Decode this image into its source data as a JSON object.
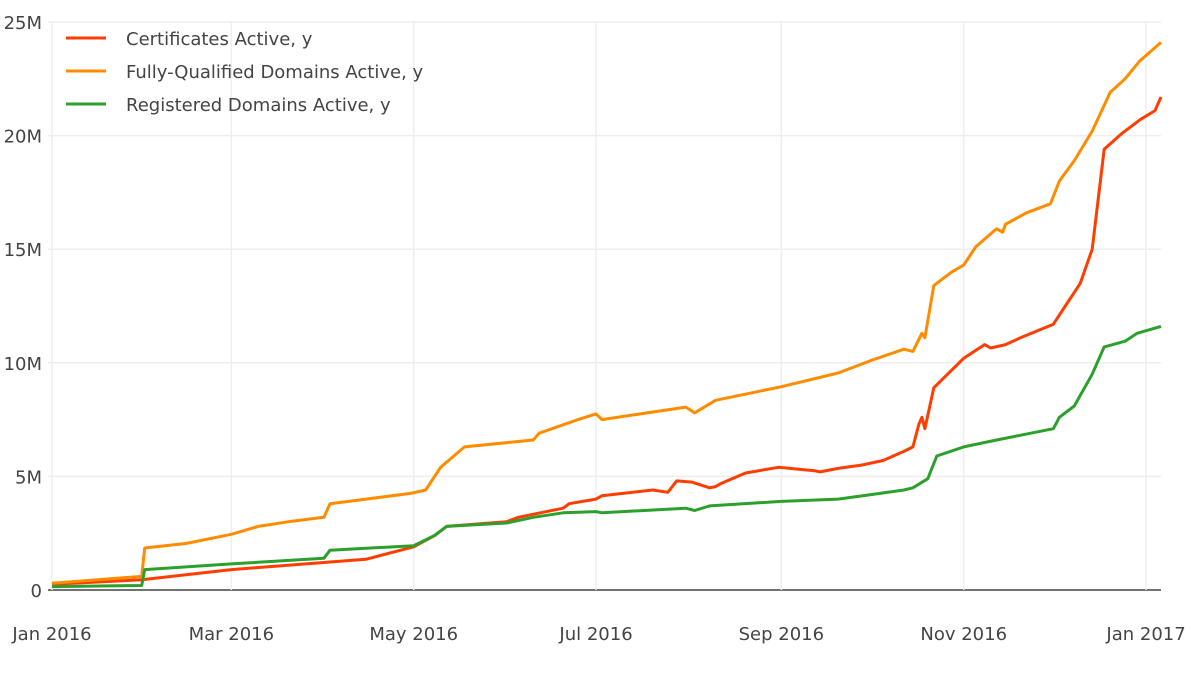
{
  "chart_data": {
    "type": "line",
    "title": "",
    "xlabel": "",
    "ylabel": "",
    "xlim": [
      "2016-01-01",
      "2017-01-06"
    ],
    "ylim": [
      0,
      25000000
    ],
    "grid": true,
    "legend_position": "top-left",
    "x_ticks": [
      {
        "date": "2016-01-01",
        "label": "Jan 2016"
      },
      {
        "date": "2016-03-01",
        "label": "Mar 2016"
      },
      {
        "date": "2016-05-01",
        "label": "May 2016"
      },
      {
        "date": "2016-07-01",
        "label": "Jul 2016"
      },
      {
        "date": "2016-09-01",
        "label": "Sep 2016"
      },
      {
        "date": "2016-11-01",
        "label": "Nov 2016"
      },
      {
        "date": "2017-01-01",
        "label": "Jan 2017"
      }
    ],
    "y_ticks": [
      {
        "value": 0,
        "label": "0"
      },
      {
        "value": 5000000,
        "label": "5M"
      },
      {
        "value": 10000000,
        "label": "10M"
      },
      {
        "value": 15000000,
        "label": "15M"
      },
      {
        "value": 20000000,
        "label": "20M"
      },
      {
        "value": 25000000,
        "label": "25M"
      }
    ],
    "series": [
      {
        "name": "Certificates Active, y",
        "color": "#ff3d00",
        "points": [
          [
            "2016-01-01",
            0.25
          ],
          [
            "2016-01-31",
            0.45
          ],
          [
            "2016-03-01",
            0.9
          ],
          [
            "2016-04-15",
            1.35
          ],
          [
            "2016-05-01",
            1.9
          ],
          [
            "2016-05-08",
            2.4
          ],
          [
            "2016-05-12",
            2.8
          ],
          [
            "2016-06-01",
            3.0
          ],
          [
            "2016-06-05",
            3.2
          ],
          [
            "2016-06-20",
            3.6
          ],
          [
            "2016-06-22",
            3.8
          ],
          [
            "2016-07-01",
            4.0
          ],
          [
            "2016-07-03",
            4.15
          ],
          [
            "2016-07-20",
            4.4
          ],
          [
            "2016-07-25",
            4.3
          ],
          [
            "2016-07-28",
            4.8
          ],
          [
            "2016-08-02",
            4.75
          ],
          [
            "2016-08-08",
            4.5
          ],
          [
            "2016-08-10",
            4.55
          ],
          [
            "2016-08-12",
            4.7
          ],
          [
            "2016-08-20",
            5.15
          ],
          [
            "2016-08-31",
            5.4
          ],
          [
            "2016-09-12",
            5.25
          ],
          [
            "2016-09-14",
            5.2
          ],
          [
            "2016-09-20",
            5.35
          ],
          [
            "2016-09-28",
            5.5
          ],
          [
            "2016-10-05",
            5.7
          ],
          [
            "2016-10-12",
            6.1
          ],
          [
            "2016-10-15",
            6.3
          ],
          [
            "2016-10-17",
            7.3
          ],
          [
            "2016-10-18",
            7.6
          ],
          [
            "2016-10-19",
            7.1
          ],
          [
            "2016-10-22",
            8.9
          ],
          [
            "2016-11-01",
            10.2
          ],
          [
            "2016-11-08",
            10.8
          ],
          [
            "2016-11-10",
            10.65
          ],
          [
            "2016-11-15",
            10.8
          ],
          [
            "2016-11-20",
            11.1
          ],
          [
            "2016-12-01",
            11.7
          ],
          [
            "2016-12-05",
            12.5
          ],
          [
            "2016-12-10",
            13.5
          ],
          [
            "2016-12-14",
            15.0
          ],
          [
            "2016-12-18",
            19.4
          ],
          [
            "2016-12-24",
            20.1
          ],
          [
            "2016-12-30",
            20.7
          ],
          [
            "2017-01-04",
            21.1
          ],
          [
            "2017-01-06",
            21.7
          ]
        ]
      },
      {
        "name": "Fully-Qualified Domains Active, y",
        "color": "#ff8c00",
        "points": [
          [
            "2016-01-01",
            0.3
          ],
          [
            "2016-01-31",
            0.6
          ],
          [
            "2016-02-01",
            1.85
          ],
          [
            "2016-02-15",
            2.05
          ],
          [
            "2016-03-01",
            2.45
          ],
          [
            "2016-03-10",
            2.8
          ],
          [
            "2016-03-20",
            3.0
          ],
          [
            "2016-04-01",
            3.2
          ],
          [
            "2016-04-03",
            3.8
          ],
          [
            "2016-04-15",
            4.0
          ],
          [
            "2016-04-30",
            4.25
          ],
          [
            "2016-05-05",
            4.4
          ],
          [
            "2016-05-10",
            5.4
          ],
          [
            "2016-05-18",
            6.3
          ],
          [
            "2016-06-10",
            6.6
          ],
          [
            "2016-06-12",
            6.9
          ],
          [
            "2016-06-25",
            7.5
          ],
          [
            "2016-07-01",
            7.75
          ],
          [
            "2016-07-03",
            7.5
          ],
          [
            "2016-07-31",
            8.05
          ],
          [
            "2016-08-03",
            7.8
          ],
          [
            "2016-08-10",
            8.35
          ],
          [
            "2016-09-01",
            8.95
          ],
          [
            "2016-09-20",
            9.55
          ],
          [
            "2016-10-01",
            10.1
          ],
          [
            "2016-10-12",
            10.6
          ],
          [
            "2016-10-15",
            10.5
          ],
          [
            "2016-10-18",
            11.3
          ],
          [
            "2016-10-19",
            11.1
          ],
          [
            "2016-10-22",
            13.4
          ],
          [
            "2016-10-28",
            14.0
          ],
          [
            "2016-11-01",
            14.3
          ],
          [
            "2016-11-05",
            15.1
          ],
          [
            "2016-11-12",
            15.9
          ],
          [
            "2016-11-14",
            15.75
          ],
          [
            "2016-11-15",
            16.1
          ],
          [
            "2016-11-22",
            16.6
          ],
          [
            "2016-11-30",
            17.0
          ],
          [
            "2016-12-03",
            18.0
          ],
          [
            "2016-12-08",
            18.9
          ],
          [
            "2016-12-14",
            20.2
          ],
          [
            "2016-12-20",
            21.9
          ],
          [
            "2016-12-25",
            22.5
          ],
          [
            "2016-12-30",
            23.3
          ],
          [
            "2017-01-06",
            24.1
          ]
        ]
      },
      {
        "name": "Registered Domains Active, y",
        "color": "#2ca02c",
        "points": [
          [
            "2016-01-01",
            0.15
          ],
          [
            "2016-01-31",
            0.2
          ],
          [
            "2016-02-01",
            0.9
          ],
          [
            "2016-03-01",
            1.15
          ],
          [
            "2016-04-01",
            1.4
          ],
          [
            "2016-04-03",
            1.75
          ],
          [
            "2016-05-01",
            1.95
          ],
          [
            "2016-05-08",
            2.4
          ],
          [
            "2016-05-12",
            2.8
          ],
          [
            "2016-06-01",
            2.95
          ],
          [
            "2016-06-10",
            3.2
          ],
          [
            "2016-06-20",
            3.4
          ],
          [
            "2016-07-01",
            3.45
          ],
          [
            "2016-07-03",
            3.4
          ],
          [
            "2016-07-31",
            3.6
          ],
          [
            "2016-08-03",
            3.5
          ],
          [
            "2016-08-08",
            3.7
          ],
          [
            "2016-09-01",
            3.9
          ],
          [
            "2016-09-20",
            4.0
          ],
          [
            "2016-10-01",
            4.2
          ],
          [
            "2016-10-12",
            4.4
          ],
          [
            "2016-10-15",
            4.5
          ],
          [
            "2016-10-20",
            4.9
          ],
          [
            "2016-10-23",
            5.9
          ],
          [
            "2016-11-01",
            6.3
          ],
          [
            "2016-11-12",
            6.6
          ],
          [
            "2016-12-01",
            7.1
          ],
          [
            "2016-12-03",
            7.6
          ],
          [
            "2016-12-08",
            8.1
          ],
          [
            "2016-12-14",
            9.5
          ],
          [
            "2016-12-18",
            10.7
          ],
          [
            "2016-12-25",
            10.95
          ],
          [
            "2016-12-29",
            11.3
          ],
          [
            "2017-01-06",
            11.6
          ]
        ]
      }
    ],
    "value_unit_in_points": "millions"
  }
}
